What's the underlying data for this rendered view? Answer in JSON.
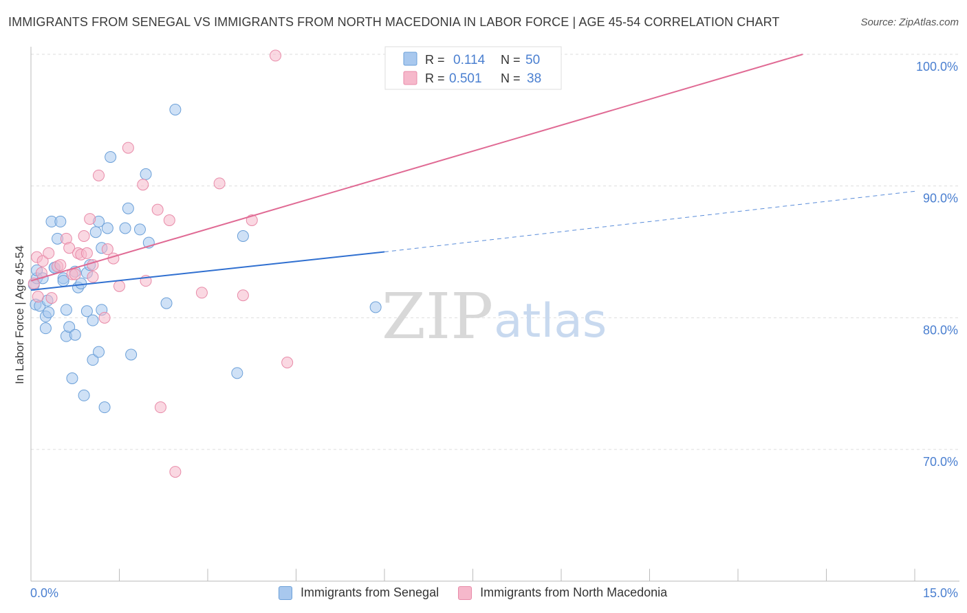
{
  "header": {
    "title": "IMMIGRANTS FROM SENEGAL VS IMMIGRANTS FROM NORTH MACEDONIA IN LABOR FORCE | AGE 45-54 CORRELATION CHART",
    "source": "Source: ZipAtlas.com"
  },
  "watermark": {
    "zip": "ZIP",
    "atlas": "atlas"
  },
  "colors": {
    "senegal_fill": "#a8c8ee",
    "senegal_stroke": "#6a9fd8",
    "senegal_line": "#2f6fd0",
    "macedonia_fill": "#f6b8cb",
    "macedonia_stroke": "#e88aa8",
    "macedonia_line": "#e06a94",
    "axis_label": "#4a7fd0",
    "grid": "#dddddd"
  },
  "legend": {
    "rows": [
      {
        "r_label": "R =",
        "r_value": "0.114",
        "n_label": "N =",
        "n_value": "50"
      },
      {
        "r_label": "R =",
        "r_value": "0.501",
        "n_label": "N =",
        "n_value": "38"
      }
    ]
  },
  "bottom_legend": {
    "senegal": "Immigrants from Senegal",
    "macedonia": "Immigrants from North Macedonia"
  },
  "chart_data": {
    "type": "scatter",
    "title": "IMMIGRANTS FROM SENEGAL VS IMMIGRANTS FROM NORTH MACEDONIA IN LABOR FORCE | AGE 45-54 CORRELATION CHART",
    "xlabel": "",
    "ylabel": "In Labor Force | Age 45-54",
    "xlim": [
      0,
      15
    ],
    "ylim": [
      60,
      102
    ],
    "x_tick_labels": [
      {
        "value": 0,
        "label": "0.0%"
      },
      {
        "value": 15,
        "label": "15.0%"
      }
    ],
    "y_tick_labels": [
      {
        "value": 100,
        "label": "100.0%"
      },
      {
        "value": 90,
        "label": "90.0%"
      },
      {
        "value": 80,
        "label": "80.0%"
      },
      {
        "value": 70,
        "label": "70.0%"
      }
    ],
    "series": [
      {
        "name": "Immigrants from Senegal",
        "r": 0.114,
        "n": 50,
        "trend": {
          "x0": 0.0,
          "y0": 82.1,
          "x1": 6.0,
          "y1": 85.0,
          "dash_x1": 15.0,
          "dash_y1": 89.6
        },
        "points": [
          [
            0.05,
            82.5
          ],
          [
            0.08,
            81.0
          ],
          [
            0.1,
            83.0
          ],
          [
            0.1,
            83.6
          ],
          [
            0.15,
            80.9
          ],
          [
            0.2,
            83.0
          ],
          [
            0.25,
            79.2
          ],
          [
            0.25,
            80.1
          ],
          [
            0.28,
            81.3
          ],
          [
            0.3,
            80.4
          ],
          [
            0.35,
            87.3
          ],
          [
            0.4,
            83.8
          ],
          [
            0.45,
            86.0
          ],
          [
            0.5,
            87.3
          ],
          [
            0.55,
            83.0
          ],
          [
            0.55,
            82.8
          ],
          [
            0.6,
            80.6
          ],
          [
            0.6,
            78.6
          ],
          [
            0.65,
            79.3
          ],
          [
            0.7,
            75.4
          ],
          [
            0.75,
            83.5
          ],
          [
            0.75,
            78.7
          ],
          [
            0.8,
            82.3
          ],
          [
            0.85,
            82.6
          ],
          [
            0.9,
            74.1
          ],
          [
            0.95,
            80.5
          ],
          [
            0.95,
            83.4
          ],
          [
            1.0,
            84.0
          ],
          [
            1.05,
            76.8
          ],
          [
            1.05,
            79.8
          ],
          [
            1.1,
            86.5
          ],
          [
            1.15,
            77.4
          ],
          [
            1.15,
            87.3
          ],
          [
            1.2,
            80.6
          ],
          [
            1.2,
            85.3
          ],
          [
            1.25,
            73.2
          ],
          [
            1.3,
            86.8
          ],
          [
            1.35,
            92.2
          ],
          [
            1.6,
            86.8
          ],
          [
            1.65,
            88.3
          ],
          [
            1.7,
            77.2
          ],
          [
            1.85,
            86.7
          ],
          [
            1.95,
            90.9
          ],
          [
            2.0,
            85.7
          ],
          [
            2.3,
            81.1
          ],
          [
            2.45,
            95.8
          ],
          [
            3.5,
            75.8
          ],
          [
            3.6,
            86.2
          ],
          [
            5.85,
            80.8
          ],
          [
            0.4,
            83.8
          ]
        ]
      },
      {
        "name": "Immigrants from North Macedonia",
        "r": 0.501,
        "n": 38,
        "trend": {
          "x0": 0.0,
          "y0": 82.8,
          "x1": 13.1,
          "y1": 100.0
        },
        "points": [
          [
            0.05,
            82.6
          ],
          [
            0.1,
            84.6
          ],
          [
            0.12,
            81.6
          ],
          [
            0.18,
            83.4
          ],
          [
            0.2,
            84.3
          ],
          [
            0.3,
            84.9
          ],
          [
            0.35,
            81.5
          ],
          [
            0.45,
            83.9
          ],
          [
            0.5,
            84.0
          ],
          [
            0.6,
            86.0
          ],
          [
            0.65,
            85.3
          ],
          [
            0.7,
            83.3
          ],
          [
            0.75,
            83.3
          ],
          [
            0.8,
            84.9
          ],
          [
            0.85,
            84.8
          ],
          [
            0.9,
            86.2
          ],
          [
            0.95,
            84.9
          ],
          [
            1.0,
            87.5
          ],
          [
            1.05,
            84.0
          ],
          [
            1.05,
            83.1
          ],
          [
            1.15,
            90.8
          ],
          [
            1.25,
            80.0
          ],
          [
            1.3,
            85.2
          ],
          [
            1.4,
            84.5
          ],
          [
            1.5,
            82.4
          ],
          [
            1.65,
            92.9
          ],
          [
            1.9,
            90.1
          ],
          [
            1.95,
            82.8
          ],
          [
            2.15,
            88.2
          ],
          [
            2.2,
            73.2
          ],
          [
            2.35,
            87.4
          ],
          [
            2.45,
            68.3
          ],
          [
            2.9,
            81.9
          ],
          [
            3.2,
            90.2
          ],
          [
            3.6,
            81.7
          ],
          [
            3.75,
            87.4
          ],
          [
            4.15,
            99.9
          ],
          [
            4.35,
            76.6
          ]
        ]
      }
    ]
  }
}
